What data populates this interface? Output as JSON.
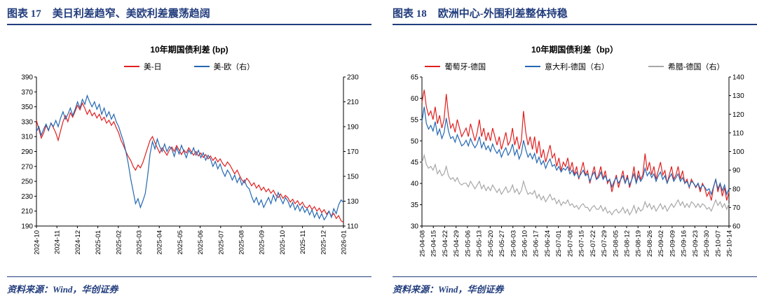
{
  "colors": {
    "header_navy": "#223d7d",
    "series_red": "#e02020",
    "series_blue": "#2468b2",
    "series_gray": "#a8a8a8",
    "axis_black": "#000000"
  },
  "figure17": {
    "label": "图表 17",
    "title": "美日利差趋窄、美欧利差震荡趋阔",
    "source": "资料来源：Wind，华创证券"
  },
  "figure18": {
    "label": "图表 18",
    "title": "欧洲中心-外围利差整体持稳",
    "source": "资料来源：Wind，华创证券"
  },
  "chart_data": [
    {
      "type": "line",
      "title": "10年期国债利差 (bp)",
      "grid": false,
      "legend_position": "top",
      "left_axis": {
        "min": 190,
        "max": 390,
        "step": 20
      },
      "right_axis": {
        "min": 110,
        "max": 230,
        "step": 20
      },
      "x_labels": [
        "2024-10",
        "2024-11",
        "2024-12",
        "2025-01",
        "2025-02",
        "2025-03",
        "2025-04",
        "2025-05",
        "2025-06",
        "2025-07",
        "2025-08",
        "2025-09",
        "2025-10",
        "2025-11",
        "2025-12",
        "2026-01"
      ],
      "series": [
        {
          "name": "美-日",
          "axis": "left",
          "color": "#e02020",
          "values": [
            332,
            320,
            308,
            315,
            325,
            318,
            328,
            322,
            315,
            305,
            318,
            330,
            338,
            330,
            342,
            336,
            344,
            352,
            346,
            355,
            348,
            340,
            346,
            338,
            342,
            335,
            340,
            332,
            336,
            328,
            332,
            325,
            330,
            322,
            315,
            305,
            298,
            290,
            283,
            278,
            270,
            265,
            272,
            268,
            275,
            285,
            295,
            305,
            310,
            302,
            295,
            288,
            295,
            290,
            285,
            292,
            296,
            290,
            298,
            292,
            286,
            292,
            288,
            295,
            290,
            285,
            290,
            284,
            288,
            282,
            286,
            280,
            284,
            278,
            282,
            276,
            280,
            274,
            270,
            276,
            272,
            266,
            260,
            265,
            258,
            252,
            248,
            254,
            250,
            244,
            248,
            241,
            245,
            238,
            242,
            236,
            240,
            234,
            238,
            232,
            228,
            233,
            227,
            231,
            228,
            222,
            226,
            220,
            224,
            218,
            222,
            216,
            214,
            218,
            212,
            216,
            210,
            214,
            208,
            212,
            206,
            210,
            203,
            207,
            200,
            204,
            197,
            195
          ]
        },
        {
          "name": "美-欧（右）",
          "axis": "right",
          "color": "#2468b2",
          "values": [
            186,
            190,
            183,
            188,
            192,
            187,
            193,
            190,
            195,
            190,
            197,
            202,
            196,
            200,
            205,
            199,
            204,
            210,
            205,
            212,
            208,
            215,
            210,
            206,
            210,
            204,
            208,
            200,
            205,
            198,
            202,
            196,
            200,
            194,
            190,
            184,
            178,
            170,
            160,
            148,
            138,
            128,
            132,
            125,
            130,
            136,
            150,
            168,
            178,
            172,
            180,
            174,
            170,
            176,
            170,
            174,
            172,
            166,
            173,
            168,
            175,
            170,
            165,
            171,
            168,
            173,
            167,
            171,
            165,
            169,
            163,
            167,
            164,
            158,
            162,
            156,
            160,
            154,
            150,
            155,
            152,
            147,
            151,
            145,
            149,
            143,
            147,
            142,
            140,
            134,
            129,
            133,
            127,
            131,
            125,
            129,
            133,
            128,
            135,
            130,
            137,
            132,
            128,
            133,
            130,
            125,
            129,
            123,
            127,
            122,
            126,
            121,
            124,
            119,
            123,
            117,
            121,
            116,
            120,
            115,
            118,
            122,
            117,
            124,
            120,
            127,
            131,
            129
          ]
        }
      ]
    },
    {
      "type": "line",
      "title": "10年期国债利差（bp）",
      "grid": false,
      "legend_position": "top",
      "left_axis": {
        "min": 30,
        "max": 65,
        "step": 5
      },
      "right_axis": {
        "min": 60,
        "max": 140,
        "step": 10
      },
      "x_labels": [
        "25-04-08",
        "25-04-15",
        "25-04-22",
        "25-04-29",
        "25-05-06",
        "25-05-13",
        "25-05-20",
        "25-05-27",
        "25-06-03",
        "25-06-10",
        "25-06-17",
        "25-06-24",
        "25-07-01",
        "25-07-08",
        "25-07-15",
        "25-07-22",
        "25-07-29",
        "25-08-05",
        "25-08-12",
        "25-08-19",
        "25-08-26",
        "25-09-02",
        "25-09-09",
        "25-09-16",
        "25-09-23",
        "25-09-30",
        "25-10-07",
        "25-10-14"
      ],
      "series": [
        {
          "name": "葡萄牙-德国",
          "axis": "left",
          "color": "#e02020",
          "values": [
            59,
            62,
            58,
            56,
            57,
            55,
            58,
            54,
            56,
            53,
            55,
            61,
            56,
            53,
            54,
            52,
            55,
            53,
            51,
            52,
            53,
            51,
            54,
            52,
            50,
            52,
            55,
            51,
            53,
            50,
            52,
            50,
            53,
            51,
            49,
            51,
            48,
            50,
            52,
            49,
            50,
            53,
            49,
            51,
            48,
            50,
            57,
            52,
            49,
            51,
            48,
            51,
            47,
            50,
            46,
            48,
            45,
            47,
            49,
            46,
            47,
            44,
            46,
            43,
            45,
            44,
            46,
            43,
            45,
            42,
            44,
            41,
            43,
            45,
            42,
            43,
            40,
            42,
            44,
            41,
            42,
            44,
            41,
            43,
            40,
            41,
            38,
            40,
            42,
            39,
            41,
            43,
            40,
            42,
            39,
            41,
            44,
            40,
            43,
            41,
            42,
            47,
            43,
            45,
            42,
            44,
            41,
            43,
            45,
            42,
            43,
            40,
            42,
            44,
            41,
            42,
            44,
            41,
            43,
            40,
            41,
            39,
            41,
            40,
            39,
            40,
            38,
            40,
            39,
            37,
            38,
            36,
            39,
            41,
            38,
            40,
            37,
            39,
            36,
            38
          ]
        },
        {
          "name": "意大利-德国（右）",
          "axis": "right",
          "color": "#2468b2",
          "values": [
            116,
            124,
            115,
            112,
            114,
            111,
            116,
            109,
            112,
            107,
            110,
            118,
            111,
            107,
            108,
            105,
            109,
            106,
            103,
            104,
            106,
            103,
            107,
            104,
            102,
            104,
            108,
            102,
            105,
            101,
            103,
            100,
            104,
            101,
            99,
            101,
            97,
            100,
            102,
            98,
            100,
            104,
            98,
            101,
            96,
            99,
            106,
            101,
            97,
            99,
            96,
            99,
            94,
            97,
            93,
            95,
            91,
            94,
            96,
            92,
            93,
            90,
            92,
            89,
            91,
            90,
            92,
            88,
            90,
            87,
            89,
            86,
            88,
            90,
            87,
            88,
            84,
            87,
            89,
            85,
            86,
            89,
            85,
            87,
            84,
            85,
            81,
            84,
            86,
            83,
            85,
            87,
            83,
            86,
            82,
            85,
            88,
            83,
            87,
            84,
            86,
            91,
            87,
            89,
            86,
            88,
            84,
            87,
            89,
            85,
            87,
            83,
            86,
            88,
            84,
            86,
            88,
            84,
            86,
            83,
            84,
            81,
            84,
            83,
            81,
            83,
            80,
            82,
            81,
            79,
            80,
            77,
            81,
            85,
            80,
            83,
            79,
            82,
            77,
            80
          ]
        },
        {
          "name": "希腊-德国（右）",
          "axis": "right",
          "color": "#a8a8a8",
          "values": [
            94,
            98,
            93,
            91,
            92,
            90,
            93,
            88,
            90,
            87,
            88,
            92,
            87,
            85,
            86,
            84,
            86,
            83,
            82,
            83,
            83,
            81,
            84,
            82,
            80,
            82,
            84,
            80,
            82,
            79,
            81,
            79,
            82,
            80,
            78,
            80,
            77,
            79,
            81,
            78,
            79,
            82,
            78,
            80,
            77,
            79,
            84,
            80,
            77,
            78,
            77,
            79,
            75,
            77,
            74,
            76,
            73,
            75,
            77,
            74,
            75,
            72,
            74,
            71,
            73,
            72,
            74,
            71,
            72,
            70,
            71,
            69,
            71,
            72,
            70,
            70,
            68,
            70,
            71,
            69,
            69,
            71,
            68,
            70,
            67,
            68,
            66,
            68,
            69,
            67,
            68,
            70,
            67,
            69,
            66,
            68,
            71,
            67,
            70,
            68,
            69,
            73,
            70,
            72,
            69,
            71,
            68,
            70,
            72,
            69,
            71,
            68,
            70,
            72,
            70,
            72,
            74,
            71,
            73,
            70,
            72,
            70,
            73,
            72,
            70,
            72,
            70,
            72,
            71,
            69,
            70,
            68,
            71,
            74,
            71,
            73,
            70,
            72,
            69,
            72
          ]
        }
      ]
    }
  ]
}
